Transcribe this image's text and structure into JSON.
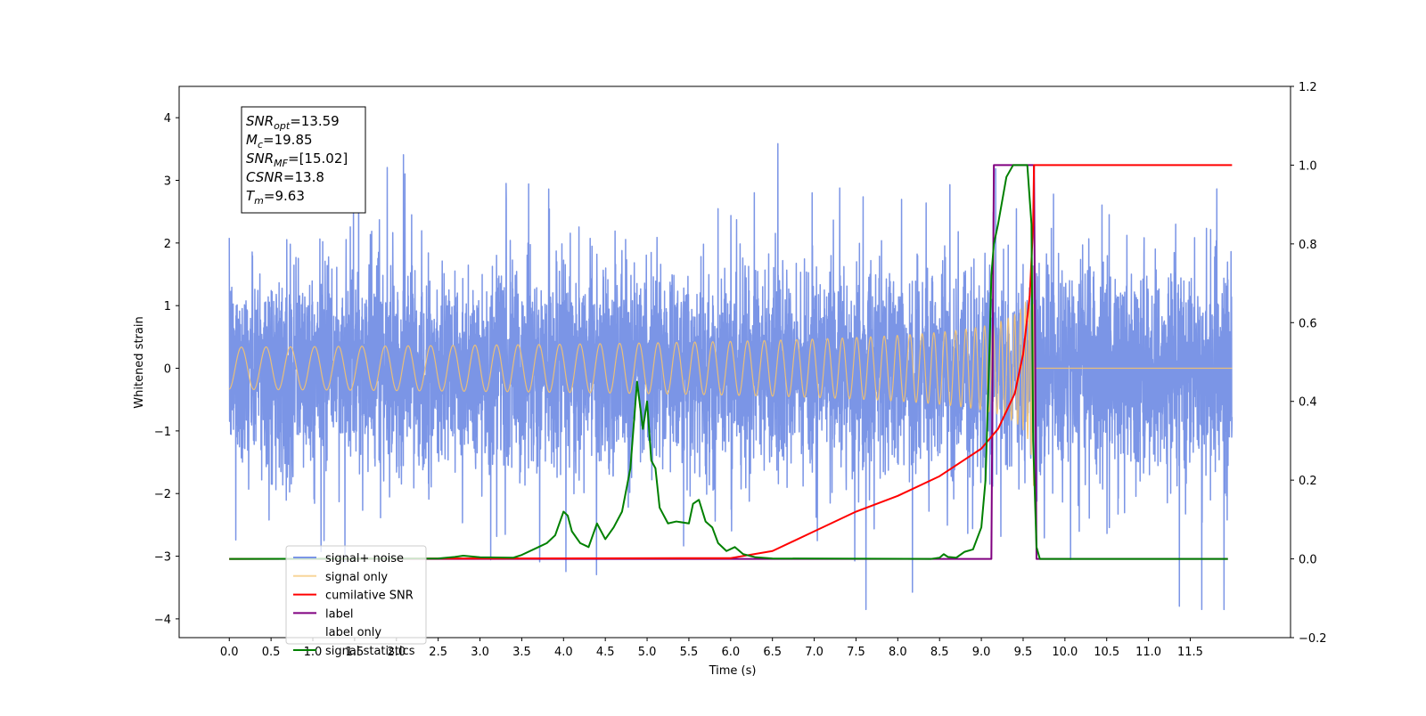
{
  "chart_data": {
    "type": "line",
    "xlabel": "Time (s)",
    "ylabel": "Whitened strain",
    "xlim": [
      -0.6,
      12.7
    ],
    "ylim": [
      -4.3,
      4.5
    ],
    "ylim_right": [
      -0.2,
      1.2
    ],
    "x_ticks": [
      "0.0",
      "0.5",
      "1.0",
      "1.5",
      "2.0",
      "2.5",
      "3.0",
      "3.5",
      "4.0",
      "4.5",
      "5.0",
      "5.5",
      "6.0",
      "6.5",
      "7.0",
      "7.5",
      "8.0",
      "8.5",
      "9.0",
      "9.5",
      "10.0",
      "10.5",
      "11.0",
      "11.5"
    ],
    "y_ticks_left": [
      "4",
      "3",
      "2",
      "1",
      "0",
      "−1",
      "−2",
      "−3",
      "−4"
    ],
    "y_ticks_right": [
      "1.2",
      "1.0",
      "0.8",
      "0.6",
      "0.4",
      "0.2",
      "0.0",
      "−0.2"
    ],
    "legend_position": "lower-left",
    "annotation": {
      "lines": [
        {
          "symbol": "SNR",
          "sub": "opt",
          "value": "=13.59"
        },
        {
          "symbol": "M",
          "sub": "c",
          "value": "=19.85"
        },
        {
          "symbol": "SNR",
          "sub": "MF",
          "value": "=[15.02]"
        },
        {
          "symbol": "CSNR",
          "sub": "",
          "value": "=13.8"
        },
        {
          "symbol": "T",
          "sub": "m",
          "value": "=9.63"
        }
      ]
    },
    "series": [
      {
        "name": "signal+ noise",
        "color": "#7b95e6",
        "axis": "left",
        "description_values": {
          "x_range": [
            0,
            12
          ],
          "noise_std": 0.75,
          "min": -3.85,
          "max": 4.1
        }
      },
      {
        "name": "signal only",
        "color": "#f5c36e",
        "axis": "left",
        "chirp": {
          "start": 0,
          "merger": 9.63,
          "peak_amplitude": 1.9
        }
      },
      {
        "name": "cumilative SNR",
        "color": "#ff0000",
        "axis": "right",
        "x": [
          0,
          6.0,
          6.5,
          7.0,
          7.5,
          8.0,
          8.5,
          9.0,
          9.2,
          9.4,
          9.5,
          9.58,
          9.62,
          9.63,
          12.0
        ],
        "y": [
          0,
          0.002,
          0.02,
          0.07,
          0.12,
          0.16,
          0.21,
          0.28,
          0.33,
          0.42,
          0.52,
          0.67,
          0.85,
          1.0,
          1.0
        ]
      },
      {
        "name": "label",
        "color": "#800080",
        "axis": "right",
        "x": [
          0,
          9.12,
          9.15,
          9.63,
          9.66,
          11.95
        ],
        "y": [
          0,
          0,
          1,
          1,
          0,
          0
        ]
      },
      {
        "name": "label only",
        "color": "#800080",
        "axis": "right",
        "hidden_in_plot": true
      },
      {
        "name": "signal statistics",
        "color": "#008000",
        "axis": "right",
        "x": [
          0,
          2.5,
          2.7,
          2.8,
          3.0,
          3.4,
          3.5,
          3.7,
          3.8,
          3.9,
          4.0,
          4.05,
          4.1,
          4.2,
          4.3,
          4.4,
          4.5,
          4.6,
          4.7,
          4.8,
          4.88,
          4.95,
          5.0,
          5.05,
          5.1,
          5.15,
          5.25,
          5.35,
          5.5,
          5.55,
          5.62,
          5.7,
          5.78,
          5.85,
          5.95,
          6.05,
          6.15,
          6.3,
          6.5,
          8.4,
          8.5,
          8.55,
          8.6,
          8.7,
          8.8,
          8.9,
          9.0,
          9.05,
          9.1,
          9.12,
          9.15,
          9.2,
          9.3,
          9.38,
          9.45,
          9.55,
          9.6,
          9.62,
          9.66,
          9.7,
          11.95
        ],
        "y": [
          0,
          0.001,
          0.005,
          0.008,
          0.004,
          0.003,
          0.01,
          0.03,
          0.04,
          0.06,
          0.12,
          0.11,
          0.07,
          0.04,
          0.03,
          0.09,
          0.05,
          0.08,
          0.12,
          0.23,
          0.45,
          0.33,
          0.4,
          0.25,
          0.23,
          0.13,
          0.09,
          0.095,
          0.09,
          0.14,
          0.15,
          0.095,
          0.08,
          0.04,
          0.02,
          0.03,
          0.012,
          0.004,
          0.001,
          0,
          0.003,
          0.012,
          0.005,
          0.003,
          0.018,
          0.024,
          0.08,
          0.2,
          0.55,
          0.72,
          0.8,
          0.85,
          0.97,
          1.0,
          1.0,
          1.0,
          0.85,
          0.3,
          0.03,
          0,
          0
        ]
      }
    ]
  }
}
